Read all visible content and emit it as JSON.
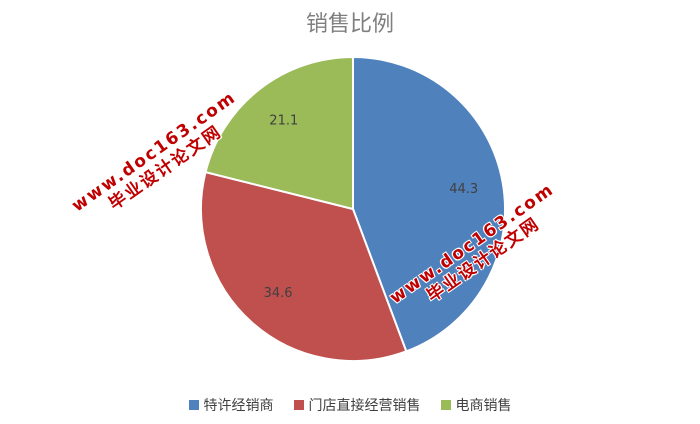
{
  "chart_data": {
    "type": "pie",
    "title": "销售比例",
    "categories": [
      "特许经销商",
      "门店直接经营销售",
      "电商销售"
    ],
    "values": [
      44.3,
      34.6,
      21.1
    ],
    "value_labels": [
      "44.3",
      "34.6",
      "21.1"
    ],
    "colors": [
      "#4f81bd",
      "#c0504d",
      "#9bbb59"
    ],
    "legend": "bottom",
    "start_angle": "top, clockwise"
  },
  "watermarks": [
    {
      "line1": "www.doc163.com",
      "line2": "毕业设计论文网"
    },
    {
      "line1": "www.doc163.com",
      "line2": "毕业设计论文网"
    }
  ]
}
